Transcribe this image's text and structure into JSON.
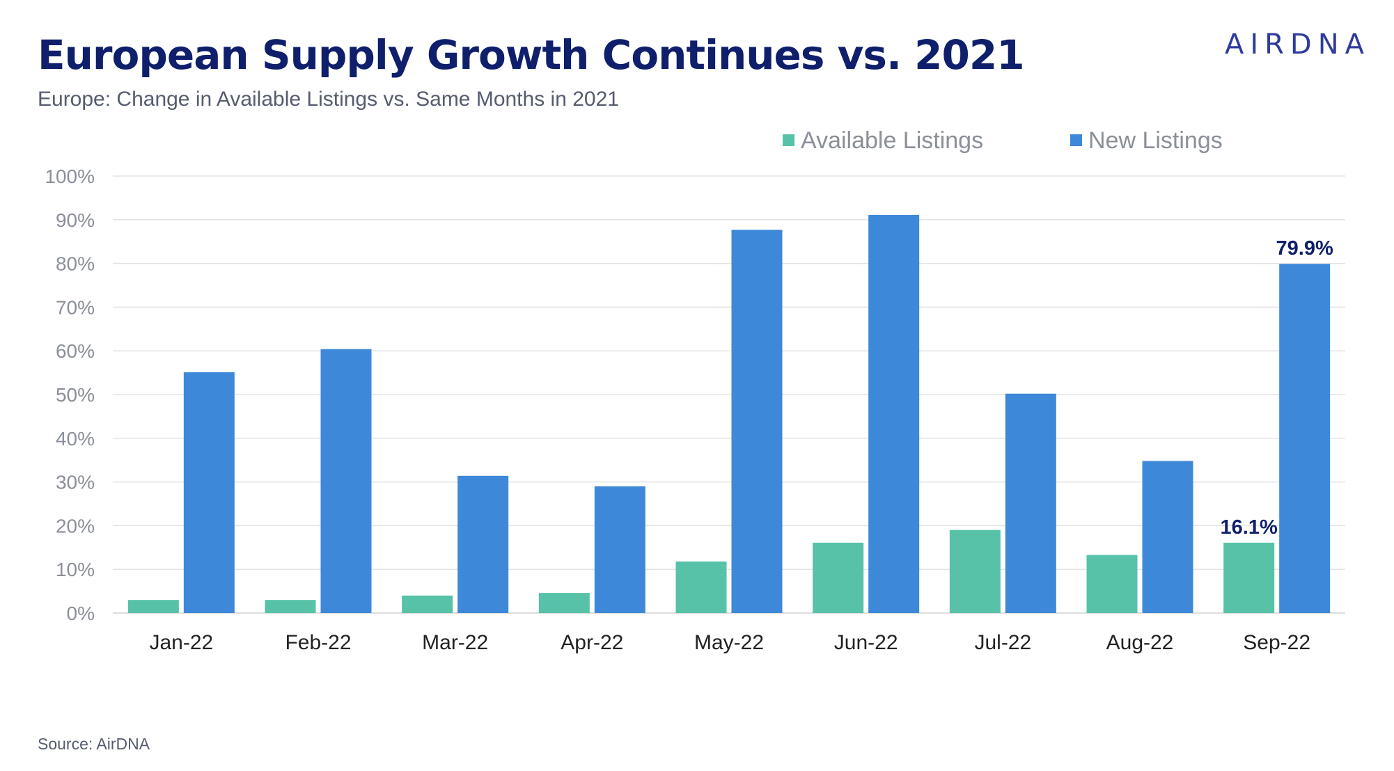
{
  "header": {
    "title": "European Supply Growth Continues vs. 2021",
    "subtitle": "Europe: Change in Available Listings vs. Same Months in 2021",
    "logo_text": "AIRDNA"
  },
  "footer": {
    "source": "Source: AirDNA"
  },
  "colors": {
    "title": "#0f1f6b",
    "subtitle": "#555c6e",
    "logo": "#2f3b9c",
    "axis_text": "#8a8f99",
    "category_text": "#222222",
    "legend_text": "#8a8f99",
    "grid": "#e3e3e3",
    "data_label": "#0f1f6b",
    "source": "#555c6e"
  },
  "chart_data": {
    "type": "bar",
    "title": "European Supply Growth Continues vs. 2021",
    "subtitle": "Europe: Change in Available Listings vs. Same Months in 2021",
    "categories": [
      "Jan-22",
      "Feb-22",
      "Mar-22",
      "Apr-22",
      "May-22",
      "Jun-22",
      "Jul-22",
      "Aug-22",
      "Sep-22"
    ],
    "series": [
      {
        "name": "Available Listings",
        "color": "#57c2a8",
        "values": [
          3.0,
          3.0,
          4.0,
          4.6,
          11.8,
          16.1,
          19.0,
          13.3,
          16.1
        ]
      },
      {
        "name": "New Listings",
        "color": "#3e88d9",
        "values": [
          55.1,
          60.4,
          31.4,
          29.0,
          87.7,
          91.1,
          50.2,
          34.8,
          79.9
        ]
      }
    ],
    "data_labels": [
      {
        "series": 0,
        "index": 8,
        "text": "16.1%"
      },
      {
        "series": 1,
        "index": 8,
        "text": "79.9%"
      }
    ],
    "ylim": [
      0,
      100
    ],
    "yticks": [
      0,
      10,
      20,
      30,
      40,
      50,
      60,
      70,
      80,
      90,
      100
    ],
    "ytick_labels": [
      "0%",
      "10%",
      "20%",
      "30%",
      "40%",
      "50%",
      "60%",
      "70%",
      "80%",
      "90%",
      "100%"
    ],
    "xlabel": "",
    "ylabel": "",
    "grid": true,
    "legend_position": "top-right"
  }
}
